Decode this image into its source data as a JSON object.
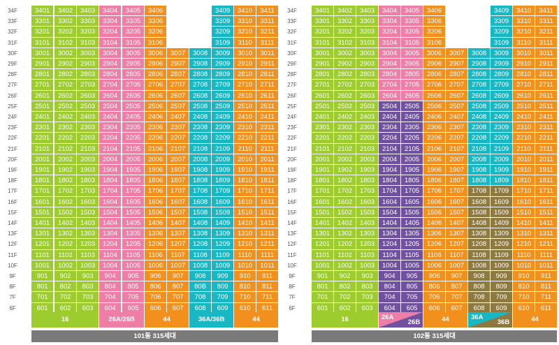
{
  "floors": [
    "34F",
    "33F",
    "32F",
    "31F",
    "30F",
    "29F",
    "28F",
    "27F",
    "26F",
    "25F",
    "24F",
    "23F",
    "22F",
    "21F",
    "20F",
    "19F",
    "18F",
    "17F",
    "16F",
    "15F",
    "14F",
    "13F",
    "12F",
    "11F",
    "10F",
    "9F",
    "8F",
    "7F",
    "6F"
  ],
  "colors": {
    "green": "#9ccc2e",
    "pink": "#ee7ea6",
    "orange": "#f2901e",
    "teal": "#17b7c3",
    "purple": "#6f519f",
    "olive": "#8e7a40",
    "caption_gray": "#7a7a7a"
  },
  "buildings": [
    {
      "caption": "101동 315세대",
      "legend": [
        {
          "label": "16",
          "color": "green"
        },
        {
          "label": "26A/26B",
          "color": "pink"
        },
        {
          "label": "44",
          "color": "orange"
        },
        {
          "label": "36A/36B",
          "color": "teal"
        },
        {
          "label": "44",
          "color": "orange"
        }
      ]
    },
    {
      "caption": "102동 315세대",
      "legend": [
        {
          "label": "16",
          "color": "green"
        },
        {
          "label": "26A",
          "label2": "26B",
          "color": "pink",
          "color2": "purple"
        },
        {
          "label": "44",
          "color": "orange"
        },
        {
          "label": "36A",
          "label2": "36B",
          "color": "teal",
          "color2": "olive"
        },
        {
          "label": "44",
          "color": "orange"
        }
      ]
    }
  ]
}
